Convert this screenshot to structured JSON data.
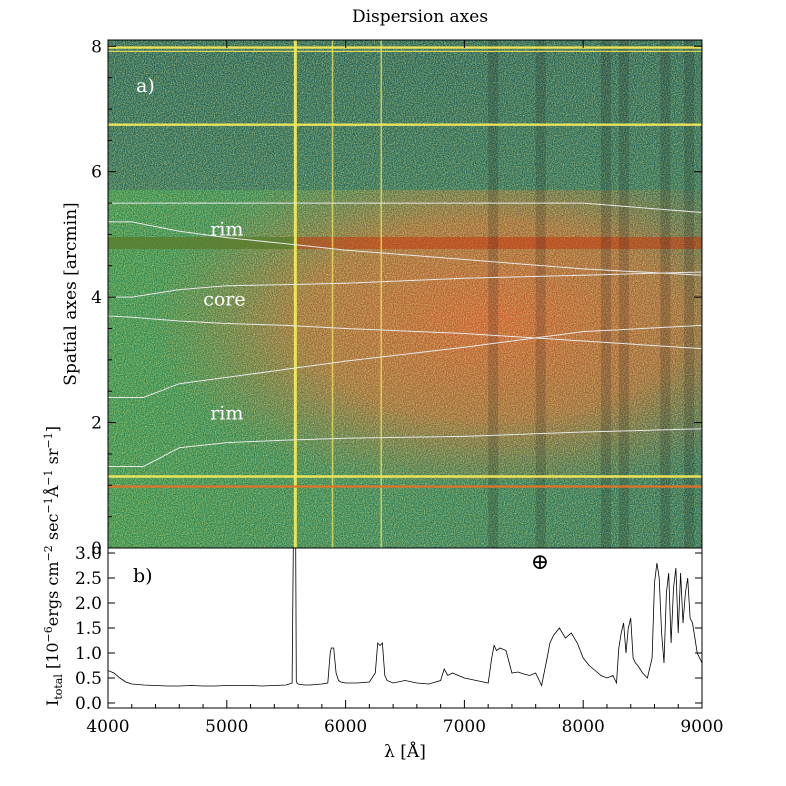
{
  "chart_data": [
    {
      "type": "heatmap",
      "title": "Dispersion axes",
      "panel_label": "a)",
      "xlim": [
        4000,
        9000
      ],
      "ylim": [
        0,
        8.1
      ],
      "ylabel": "Spatial axes [arcmin]",
      "y_ticks": [
        0,
        2,
        4,
        6,
        8
      ],
      "y_tick_labels": [
        "0",
        "2",
        "4",
        "6",
        "8"
      ],
      "annotations": [
        {
          "text": "rim",
          "x": 5000,
          "y": 4.98
        },
        {
          "text": "core",
          "x": 4980,
          "y": 3.87
        },
        {
          "text": "rim",
          "x": 5000,
          "y": 2.05
        }
      ],
      "contours": [
        {
          "name": "c1",
          "x": [
            4000,
            4200,
            4600,
            5000,
            5500,
            6000,
            7000,
            8000,
            9000
          ],
          "y": [
            5.5,
            5.5,
            5.5,
            5.5,
            5.5,
            5.5,
            5.5,
            5.5,
            5.35
          ]
        },
        {
          "name": "c2",
          "x": [
            4000,
            4200,
            4600,
            5000,
            5500,
            6000,
            7000,
            8000,
            9000
          ],
          "y": [
            5.2,
            5.2,
            5.05,
            4.95,
            4.85,
            4.75,
            4.6,
            4.45,
            4.35
          ]
        },
        {
          "name": "c3",
          "x": [
            4000,
            4200,
            4600,
            5000,
            5500,
            6000,
            7000,
            8000,
            9000
          ],
          "y": [
            4.0,
            4.0,
            4.12,
            4.18,
            4.2,
            4.22,
            4.3,
            4.35,
            4.4
          ]
        },
        {
          "name": "c4",
          "x": [
            4000,
            4200,
            4600,
            5000,
            5500,
            6000,
            7000,
            8000,
            9000
          ],
          "y": [
            3.7,
            3.68,
            3.62,
            3.58,
            3.55,
            3.5,
            3.42,
            3.3,
            3.18
          ]
        },
        {
          "name": "c5",
          "x": [
            4000,
            4300,
            4600,
            5000,
            5500,
            6000,
            7000,
            8000,
            9000
          ],
          "y": [
            2.4,
            2.4,
            2.62,
            2.72,
            2.85,
            2.98,
            3.2,
            3.45,
            3.55
          ]
        },
        {
          "name": "c6",
          "x": [
            4000,
            4300,
            4600,
            5000,
            5500,
            6000,
            7000,
            8000,
            9000
          ],
          "y": [
            1.3,
            1.3,
            1.6,
            1.68,
            1.72,
            1.75,
            1.78,
            1.85,
            1.9
          ]
        }
      ],
      "horizontal_emission_rows": [
        7.98,
        7.92,
        6.75,
        1.14,
        0.98
      ],
      "strong_vertical_lines": [
        5577,
        6300,
        5890
      ],
      "colors": {
        "background": "#2b7e58",
        "nebula": "#d9602a",
        "line": "#f3e85a"
      }
    },
    {
      "type": "line",
      "panel_label": "b)",
      "symbol": "⊕",
      "xlim": [
        4000,
        9000
      ],
      "ylim": [
        -0.1,
        3.1
      ],
      "x_ticks": [
        4000,
        5000,
        6000,
        7000,
        8000,
        9000
      ],
      "x_tick_labels": [
        "4000",
        "5000",
        "6000",
        "7000",
        "8000",
        "9000"
      ],
      "y_ticks": [
        0.0,
        0.5,
        1.0,
        1.5,
        2.0,
        2.5,
        3.0
      ],
      "y_tick_labels": [
        "0.0",
        "0.5",
        "1.0",
        "1.5",
        "2.0",
        "2.5",
        "3.0"
      ],
      "xlabel": "λ [Å]",
      "ylabel_parts": {
        "main": "I",
        "sub": "total",
        "units_a": " [10",
        "exp1": "−6",
        "units_b": "ergs cm",
        "exp2": "−2",
        "units_c": " sec",
        "exp3": "−1",
        "units_d": "Å",
        "exp4": "−1",
        "units_e": " sr",
        "exp5": "−1",
        "units_f": "]"
      },
      "series": [
        {
          "x": [
            4000,
            4050,
            4100,
            4150,
            4200,
            4300,
            4400,
            4500,
            4600,
            4700,
            4800,
            4900,
            5000,
            5100,
            5200,
            5300,
            5400,
            5500,
            5550,
            5560,
            5570,
            5575,
            5580,
            5585,
            5590,
            5600,
            5650,
            5700,
            5750,
            5800,
            5850,
            5870,
            5880,
            5900,
            5920,
            5940,
            5960,
            6000,
            6100,
            6200,
            6250,
            6270,
            6290,
            6310,
            6330,
            6350,
            6400,
            6500,
            6600,
            6700,
            6800,
            6830,
            6860,
            6900,
            6950,
            7000,
            7100,
            7200,
            7230,
            7250,
            7270,
            7300,
            7350,
            7400,
            7450,
            7500,
            7550,
            7600,
            7650,
            7700,
            7720,
            7750,
            7800,
            7850,
            7900,
            7950,
            8000,
            8050,
            8100,
            8150,
            8200,
            8250,
            8280,
            8300,
            8320,
            8340,
            8360,
            8380,
            8400,
            8420,
            8440,
            8460,
            8500,
            8540,
            8580,
            8600,
            8620,
            8640,
            8660,
            8680,
            8700,
            8720,
            8740,
            8760,
            8780,
            8800,
            8820,
            8840,
            8860,
            8880,
            8900,
            8920,
            8940,
            8960,
            8980,
            9000
          ],
          "y": [
            0.65,
            0.6,
            0.5,
            0.42,
            0.38,
            0.36,
            0.35,
            0.34,
            0.34,
            0.35,
            0.34,
            0.34,
            0.35,
            0.35,
            0.35,
            0.34,
            0.35,
            0.36,
            0.4,
            3.1,
            3.1,
            3.1,
            3.1,
            0.45,
            0.4,
            0.38,
            0.36,
            0.36,
            0.37,
            0.38,
            0.4,
            1.0,
            1.1,
            1.1,
            0.6,
            0.45,
            0.42,
            0.4,
            0.4,
            0.42,
            0.6,
            1.2,
            1.15,
            1.2,
            0.55,
            0.45,
            0.4,
            0.45,
            0.4,
            0.38,
            0.45,
            0.68,
            0.55,
            0.6,
            0.55,
            0.5,
            0.45,
            0.4,
            0.9,
            1.15,
            1.05,
            1.1,
            1.05,
            0.6,
            0.62,
            0.58,
            0.55,
            0.6,
            0.35,
            0.95,
            1.2,
            1.35,
            1.5,
            1.3,
            1.4,
            1.2,
            0.9,
            0.75,
            0.65,
            0.55,
            0.5,
            0.55,
            0.4,
            1.1,
            1.4,
            1.6,
            1.0,
            1.5,
            1.7,
            0.9,
            0.8,
            0.75,
            0.6,
            0.5,
            0.9,
            2.4,
            2.8,
            2.5,
            1.4,
            0.8,
            2.2,
            2.6,
            1.2,
            2.3,
            2.7,
            1.4,
            2.6,
            1.6,
            2.2,
            2.5,
            1.7,
            1.6,
            1.3,
            1.0,
            0.9,
            0.8
          ]
        }
      ]
    }
  ]
}
